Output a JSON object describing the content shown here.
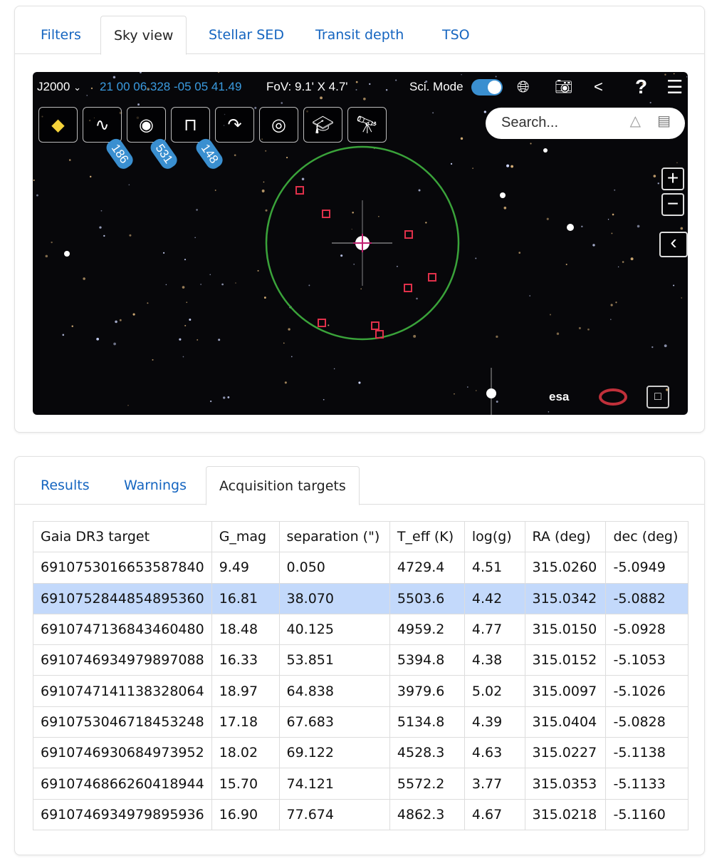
{
  "top_tabs": [
    {
      "label": "Filters"
    },
    {
      "label": "Sky view"
    },
    {
      "label": "Stellar SED"
    },
    {
      "label": "Transit depth"
    },
    {
      "label": "TSO"
    }
  ],
  "sky": {
    "frame": "J2000",
    "coords": "21 00 06.328 -05 05 41.49",
    "fov": "FoV: 9.1' X 4.7'",
    "sci_mode_label": "Sci. Mode",
    "sci_mode_on": true,
    "search_placeholder": "Search...",
    "badges": [
      "186",
      "531",
      "148"
    ],
    "esa_logo": "esa",
    "accent": "#3a8fd0",
    "circle_color": "#3aa33a",
    "marker_color": "#e0304a",
    "tools": [
      "layers-icon",
      "galaxy-icon",
      "catalog-icon",
      "spectrum-icon",
      "redirect-icon",
      "target-icon",
      "education-icon",
      "telescope-icon"
    ]
  },
  "bottom_tabs": [
    {
      "label": "Results"
    },
    {
      "label": "Warnings"
    },
    {
      "label": "Acquisition targets"
    }
  ],
  "table": {
    "headers": [
      "Gaia DR3 target",
      "G_mag",
      "separation (\")",
      "T_eff (K)",
      "log(g)",
      "RA (deg)",
      "dec (deg)"
    ],
    "selected_row": 1,
    "rows": [
      [
        "6910753016653587840",
        "9.49",
        "0.050",
        "4729.4",
        "4.51",
        "315.0260",
        "-5.0949"
      ],
      [
        "6910752844854895360",
        "16.81",
        "38.070",
        "5503.6",
        "4.42",
        "315.0342",
        "-5.0882"
      ],
      [
        "6910747136843460480",
        "18.48",
        "40.125",
        "4959.2",
        "4.77",
        "315.0150",
        "-5.0928"
      ],
      [
        "6910746934979897088",
        "16.33",
        "53.851",
        "5394.8",
        "4.38",
        "315.0152",
        "-5.1053"
      ],
      [
        "6910747141138328064",
        "18.97",
        "64.838",
        "3979.6",
        "5.02",
        "315.0097",
        "-5.1026"
      ],
      [
        "6910753046718453248",
        "17.18",
        "67.683",
        "5134.8",
        "4.39",
        "315.0404",
        "-5.0828"
      ],
      [
        "6910746930684973952",
        "18.02",
        "69.122",
        "4528.3",
        "4.63",
        "315.0227",
        "-5.1138"
      ],
      [
        "6910746866260418944",
        "15.70",
        "74.121",
        "5572.2",
        "3.77",
        "315.0353",
        "-5.1133"
      ],
      [
        "6910746934979895936",
        "16.90",
        "77.674",
        "4862.3",
        "4.67",
        "315.0218",
        "-5.1160"
      ]
    ]
  }
}
